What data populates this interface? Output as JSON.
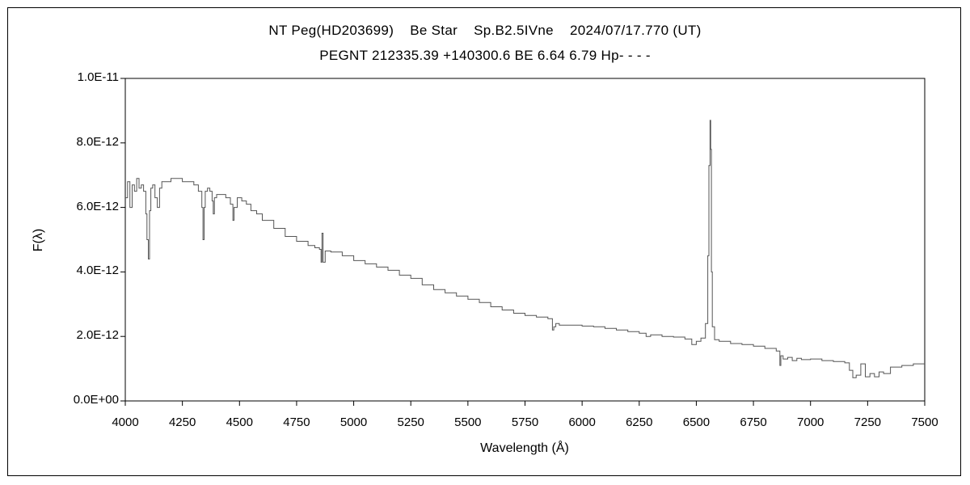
{
  "chart_data": {
    "type": "line",
    "title": "NT Peg(HD203699)    Be Star    Sp.B2.5IVne    2024/07/17.770 (UT)",
    "subtitle": "PEGNT 212335.39 +140300.6 BE 6.64 6.79 Hp- - - -",
    "xlabel": "Wavelength (Å)",
    "ylabel": "F(λ)",
    "xlim": [
      4000,
      7500
    ],
    "ylim": [
      0,
      1e-11
    ],
    "xticks": [
      "4000",
      "4250",
      "4500",
      "4750",
      "5000",
      "5250",
      "5500",
      "5750",
      "6000",
      "6250",
      "6500",
      "6750",
      "7000",
      "7250",
      "7500"
    ],
    "yticks": [
      "0.0E+00",
      "2.0E-12",
      "4.0E-12",
      "6.0E-12",
      "8.0E-12",
      "1.0E-11"
    ],
    "grid": false,
    "series": [
      {
        "color": "#555555",
        "x": [
          4000,
          4010,
          4020,
          4030,
          4040,
          4050,
          4060,
          4070,
          4080,
          4090,
          4095,
          4101,
          4106,
          4112,
          4120,
          4130,
          4140,
          4150,
          4160,
          4180,
          4200,
          4225,
          4250,
          4275,
          4300,
          4320,
          4335,
          4340,
          4345,
          4350,
          4360,
          4370,
          4380,
          4385,
          4390,
          4400,
          4420,
          4440,
          4460,
          4471,
          4476,
          4490,
          4510,
          4530,
          4550,
          4575,
          4600,
          4650,
          4700,
          4750,
          4800,
          4830,
          4850,
          4857,
          4861,
          4866,
          4875,
          4900,
          4950,
          5000,
          5050,
          5100,
          5150,
          5200,
          5250,
          5300,
          5350,
          5400,
          5450,
          5500,
          5550,
          5600,
          5650,
          5700,
          5750,
          5800,
          5850,
          5870,
          5876,
          5885,
          5900,
          5950,
          6000,
          6050,
          6100,
          6150,
          6200,
          6250,
          6280,
          6300,
          6350,
          6400,
          6450,
          6480,
          6500,
          6520,
          6540,
          6550,
          6555,
          6560,
          6563,
          6566,
          6570,
          6580,
          6600,
          6650,
          6700,
          6750,
          6800,
          6850,
          6866,
          6870,
          6880,
          6900,
          6920,
          6940,
          6960,
          7000,
          7050,
          7100,
          7150,
          7170,
          7185,
          7200,
          7220,
          7240,
          7260,
          7280,
          7300,
          7320,
          7350,
          7400,
          7450,
          7500
        ],
        "y": [
          6.3e-12,
          6.8e-12,
          6e-12,
          6.7e-12,
          6.5e-12,
          6.9e-12,
          6.6e-12,
          6.7e-12,
          6.5e-12,
          5.8e-12,
          5e-12,
          4.4e-12,
          5.9e-12,
          6.6e-12,
          6.7e-12,
          6.3e-12,
          6e-12,
          6.6e-12,
          6.8e-12,
          6.8e-12,
          6.9e-12,
          6.9e-12,
          6.8e-12,
          6.8e-12,
          6.7e-12,
          6.5e-12,
          6e-12,
          5e-12,
          6e-12,
          6.5e-12,
          6.6e-12,
          6.5e-12,
          6.2e-12,
          5.8e-12,
          6.3e-12,
          6.4e-12,
          6.4e-12,
          6.3e-12,
          6.1e-12,
          5.6e-12,
          6e-12,
          6.3e-12,
          6.2e-12,
          6.1e-12,
          5.9e-12,
          5.8e-12,
          5.6e-12,
          5.35e-12,
          5.1e-12,
          4.95e-12,
          4.82e-12,
          4.75e-12,
          4.7e-12,
          4.3e-12,
          5.2e-12,
          4.3e-12,
          4.65e-12,
          4.62e-12,
          4.5e-12,
          4.35e-12,
          4.25e-12,
          4.15e-12,
          4.05e-12,
          3.9e-12,
          3.8e-12,
          3.6e-12,
          3.45e-12,
          3.35e-12,
          3.25e-12,
          3.15e-12,
          3.05e-12,
          2.92e-12,
          2.82e-12,
          2.72e-12,
          2.65e-12,
          2.6e-12,
          2.55e-12,
          2.2e-12,
          2.3e-12,
          2.4e-12,
          2.35e-12,
          2.35e-12,
          2.32e-12,
          2.3e-12,
          2.25e-12,
          2.2e-12,
          2.15e-12,
          2.1e-12,
          2e-12,
          2.05e-12,
          2e-12,
          1.98e-12,
          1.92e-12,
          1.75e-12,
          1.85e-12,
          1.95e-12,
          2.4e-12,
          4.5e-12,
          7.3e-12,
          8.7e-12,
          7.8e-12,
          4e-12,
          2.3e-12,
          1.9e-12,
          1.85e-12,
          1.78e-12,
          1.75e-12,
          1.7e-12,
          1.63e-12,
          1.55e-12,
          1.1e-12,
          1.4e-12,
          1.3e-12,
          1.35e-12,
          1.25e-12,
          1.32e-12,
          1.28e-12,
          1.3e-12,
          1.25e-12,
          1.22e-12,
          1.18e-12,
          9.5e-13,
          7.2e-13,
          8e-13,
          1.15e-12,
          7.5e-13,
          8.5e-13,
          7.5e-13,
          9e-13,
          8.5e-13,
          1.05e-12,
          1.1e-12,
          1.15e-12,
          1.15e-12
        ]
      }
    ]
  }
}
